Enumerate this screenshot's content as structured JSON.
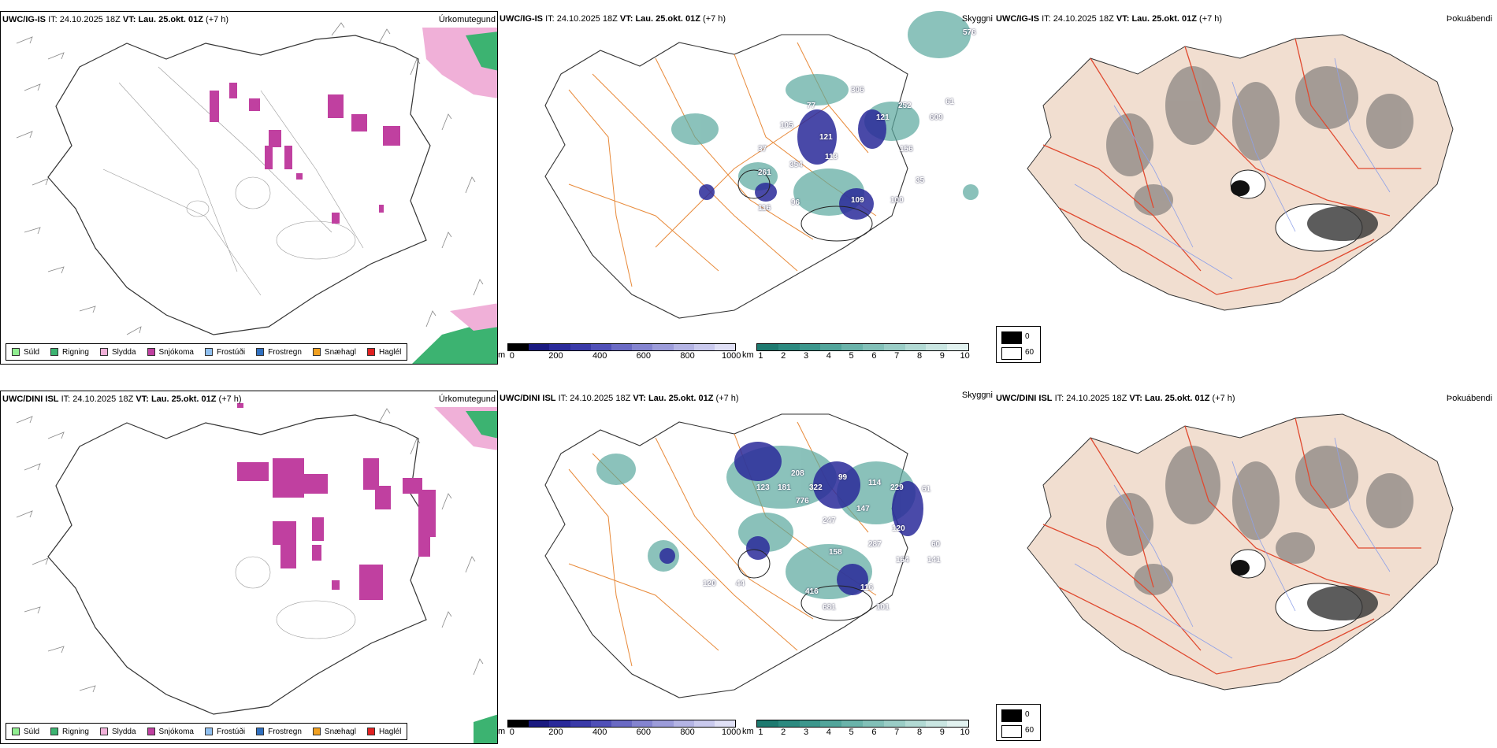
{
  "rows": [
    {
      "model": "UWC/IG-IS",
      "it_label": "IT:",
      "it_value": "24.10.2025 18Z",
      "vt_label": "VT: Lau. 25.okt. 01Z",
      "lead": "(+7 h)",
      "numbers": [
        "576",
        "306",
        "252",
        "121",
        "609",
        "61",
        "77",
        "105",
        "37",
        "113",
        "261",
        "121",
        "354",
        "116",
        "156",
        "35",
        "96",
        "109",
        "100"
      ]
    },
    {
      "model": "UWC/DINI ISL",
      "it_label": "IT:",
      "it_value": "24.10.2025 18Z",
      "vt_label": "VT: Lau. 25.okt. 01Z",
      "lead": "(+7 h)",
      "numbers": [
        "208",
        "123",
        "181",
        "322",
        "99",
        "114",
        "229",
        "61",
        "776",
        "247",
        "147",
        "120",
        "287",
        "60",
        "141",
        "158",
        "164",
        "116",
        "44",
        "120",
        "416",
        "681",
        "101"
      ]
    }
  ],
  "panel_types": {
    "precip": "Úrkomutegund",
    "cloud": "Skyggni",
    "fog": "Þokuábendi"
  },
  "precip_legend": [
    {
      "label": "Súld",
      "color": "#90ee90"
    },
    {
      "label": "Rigning",
      "color": "#3cb371"
    },
    {
      "label": "Slydda",
      "color": "#f0b0d8"
    },
    {
      "label": "Snjókoma",
      "color": "#c040a0"
    },
    {
      "label": "Frostúði",
      "color": "#90c0f0"
    },
    {
      "label": "Frostregn",
      "color": "#3070c0"
    },
    {
      "label": "Snæhagl",
      "color": "#f0a020"
    },
    {
      "label": "Haglél",
      "color": "#e02020"
    }
  ],
  "ceiling_bar": {
    "unit": "m",
    "ticks": [
      "0",
      "200",
      "400",
      "600",
      "800",
      "1000"
    ],
    "colors": [
      "#000000",
      "#1a1a80",
      "#2a2a9a",
      "#3a3aa8",
      "#5050b8",
      "#6a6ac4",
      "#8484d0",
      "#9c9cda",
      "#b4b4e4",
      "#cacaee",
      "#e0e0f6"
    ]
  },
  "vis_bar": {
    "unit": "km",
    "ticks": [
      "1",
      "2",
      "3",
      "4",
      "5",
      "6",
      "7",
      "8",
      "9",
      "10"
    ],
    "colors": [
      "#1e7a70",
      "#2c8a80",
      "#3c978d",
      "#52a59b",
      "#6ab3aa",
      "#82c0b8",
      "#9acdc6",
      "#b2dad4",
      "#cae6e2",
      "#e2f2f0"
    ]
  },
  "fog_legend": [
    {
      "label": "0",
      "color": "#000000"
    },
    {
      "label": "60",
      "color": "#ffffff"
    }
  ]
}
